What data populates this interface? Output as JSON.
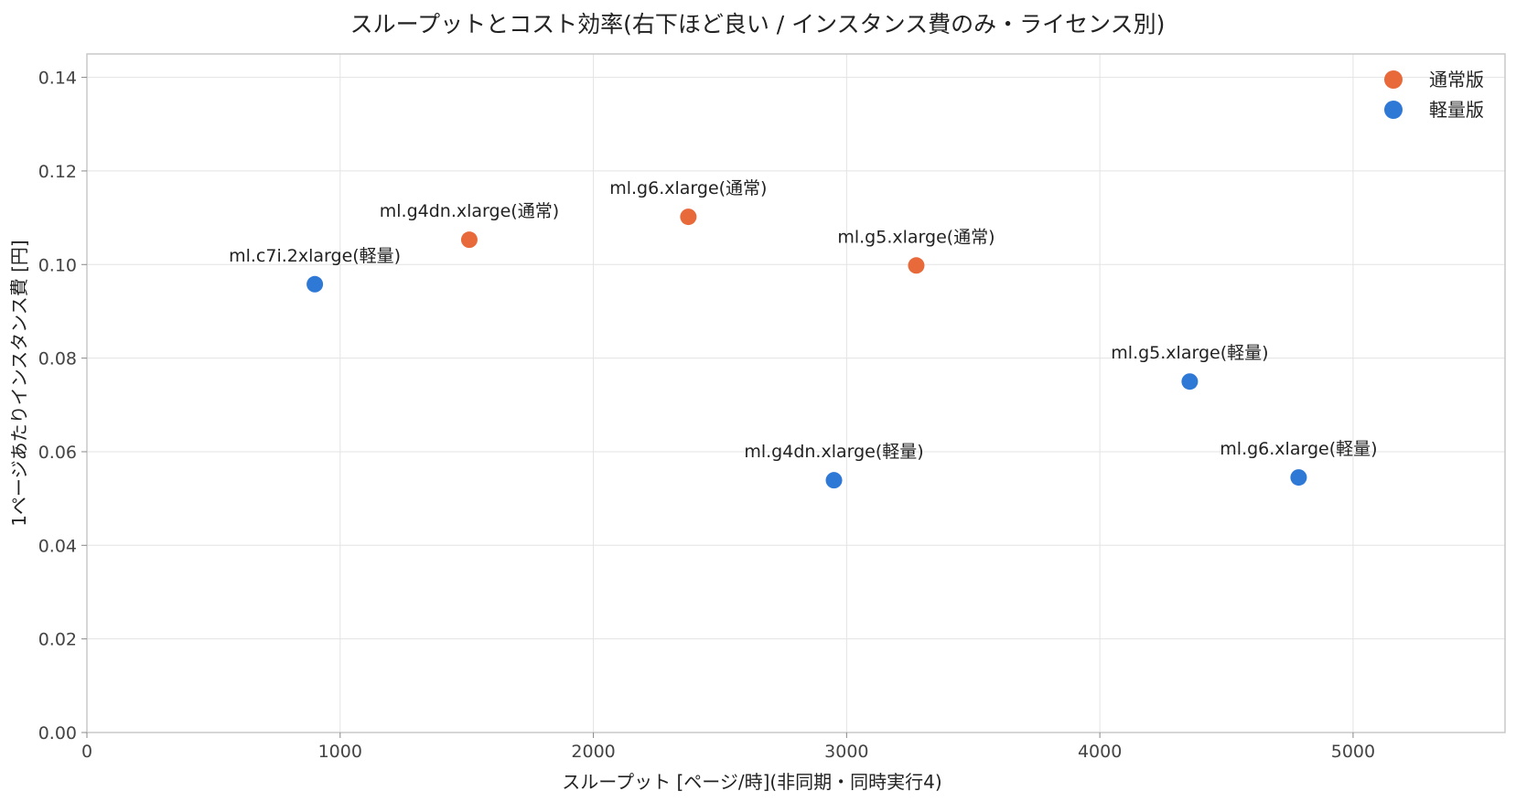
{
  "chart_data": {
    "type": "scatter",
    "title": "スループットとコスト効率(右下ほど良い / インスタンス費のみ・ライセンス別)",
    "xlabel": "スループット [ページ/時](非同期・同時実行4)",
    "ylabel": "1ページあたりインスタンス費 [円]",
    "xlim": [
      0,
      5600
    ],
    "ylim": [
      0,
      0.145
    ],
    "x_ticks": [
      0,
      1000,
      2000,
      3000,
      4000,
      5000
    ],
    "y_ticks": [
      0.0,
      0.02,
      0.04,
      0.06,
      0.08,
      0.1,
      0.12,
      0.14
    ],
    "grid": true,
    "legend_position": "top-right",
    "series": [
      {
        "name": "通常版",
        "color": "#e8693a",
        "points": [
          {
            "label": "ml.g4dn.xlarge(通常)",
            "x": 1510,
            "y": 0.1053
          },
          {
            "label": "ml.g6.xlarge(通常)",
            "x": 2375,
            "y": 0.1102
          },
          {
            "label": "ml.g5.xlarge(通常)",
            "x": 3275,
            "y": 0.0998
          }
        ]
      },
      {
        "name": "軽量版",
        "color": "#2e78d6",
        "points": [
          {
            "label": "ml.c7i.2xlarge(軽量)",
            "x": 900,
            "y": 0.0958
          },
          {
            "label": "ml.g4dn.xlarge(軽量)",
            "x": 2950,
            "y": 0.0539
          },
          {
            "label": "ml.g5.xlarge(軽量)",
            "x": 4355,
            "y": 0.075
          },
          {
            "label": "ml.g6.xlarge(軽量)",
            "x": 4785,
            "y": 0.0545
          }
        ]
      }
    ]
  }
}
